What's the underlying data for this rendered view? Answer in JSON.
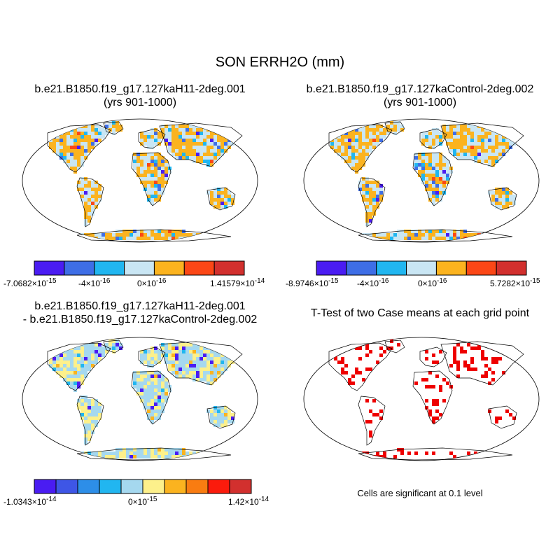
{
  "page_title": "SON ERRH2O (mm)",
  "colors": {
    "scale7": [
      "#4a1cf2",
      "#3e6ee6",
      "#21b6f0",
      "#c9e6f4",
      "#fbb31f",
      "#fb4716",
      "#d2302e"
    ],
    "scale10": [
      "#4a1cf2",
      "#3e56e6",
      "#2d8ee8",
      "#21b6f0",
      "#a5d8ef",
      "#fdf08b",
      "#fbb31f",
      "#f97c11",
      "#fb1b0c",
      "#d2302e"
    ],
    "ocean": "#ffffff",
    "land_fill_top": "#fbb31f",
    "land_fill_diff": "#a5d8ef",
    "significant": "#ee0000"
  },
  "panels": [
    {
      "id": "case1",
      "title_line1": "b.e21.B1850.f19_g17.127kaH11-2deg.001",
      "title_line2": "(yrs 901-1000)",
      "colorbar": {
        "labels": [
          "-7.0682×10",
          "-4×10",
          "0×10",
          "1.41579×10"
        ],
        "exponents": [
          "-15",
          "-16",
          "-16",
          "-14"
        ]
      }
    },
    {
      "id": "case2",
      "title_line1": "b.e21.B1850.f19_g17.127kaControl-2deg.002",
      "title_line2": "(yrs 901-1000)",
      "colorbar": {
        "labels": [
          "-8.9746×10",
          "-4×10",
          "0×10",
          "5.7282×10"
        ],
        "exponents": [
          "-15",
          "-16",
          "-16",
          "-15"
        ]
      }
    },
    {
      "id": "diff",
      "title_line1": "b.e21.B1850.f19_g17.127kaH11-2deg.001",
      "title_line2": "- b.e21.B1850.f19_g17.127kaControl-2deg.002",
      "colorbar": {
        "labels": [
          "-1.0343×10",
          "0×10",
          "1.42×10"
        ],
        "exponents": [
          "-14",
          "-15",
          "-14"
        ]
      }
    },
    {
      "id": "ttest",
      "title_line1": "T-Test of two Case means at each grid point",
      "note": "Cells are significant at 0.1 level"
    }
  ]
}
